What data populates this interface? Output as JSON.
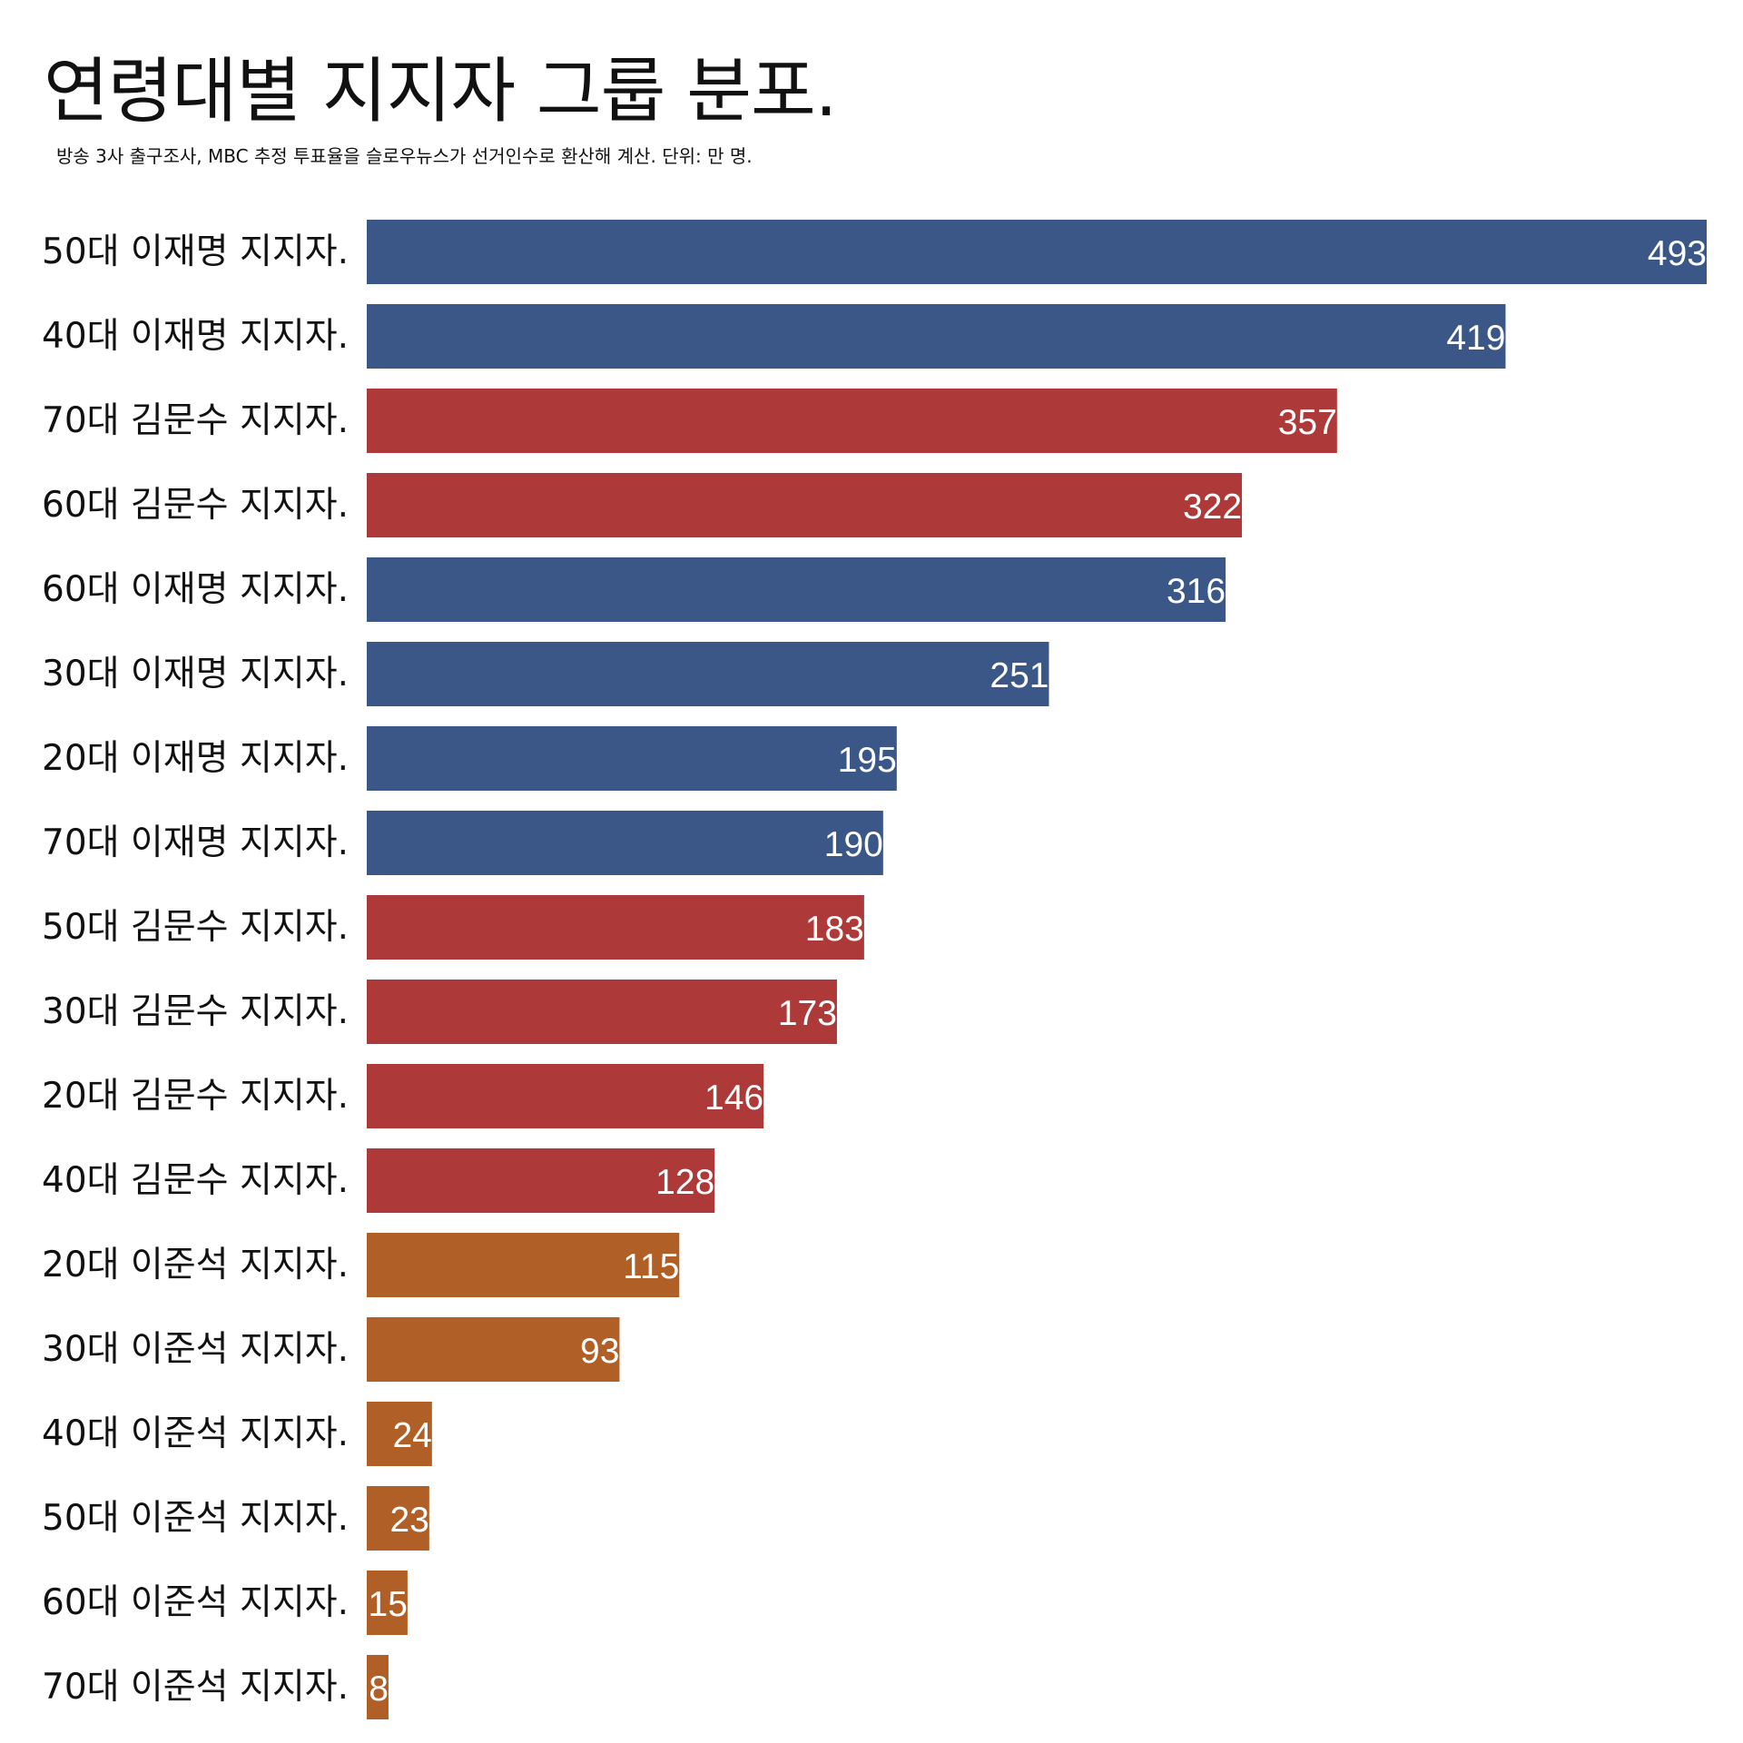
{
  "chart_data": {
    "type": "bar",
    "orientation": "horizontal",
    "title": "연령대별 지지자 그룹 분포.",
    "subtitle": "방송 3사 출구조사, MBC 추정 투표율을 슬로우뉴스가 선거인수로 환산해 계산.  단위: 만 명.",
    "categories": [
      "50대 이재명 지지자.",
      "40대 이재명 지지자.",
      "70대 김문수 지지자.",
      "60대 김문수 지지자.",
      "60대 이재명 지지자.",
      "30대 이재명 지지자.",
      "20대 이재명 지지자.",
      "70대 이재명 지지자.",
      "50대 김문수 지지자.",
      "30대 김문수 지지자.",
      "20대 김문수 지지자.",
      "40대 김문수 지지자.",
      "20대 이준석 지지자.",
      "30대 이준석 지지자.",
      "40대 이준석 지지자.",
      "50대 이준석 지지자.",
      "60대 이준석 지지자.",
      "70대 이준석 지지자."
    ],
    "values": [
      493,
      419,
      357,
      322,
      316,
      251,
      195,
      190,
      183,
      173,
      146,
      128,
      115,
      93,
      24,
      23,
      15,
      8
    ],
    "candidate": [
      "이재명",
      "이재명",
      "김문수",
      "김문수",
      "이재명",
      "이재명",
      "이재명",
      "이재명",
      "김문수",
      "김문수",
      "김문수",
      "김문수",
      "이준석",
      "이준석",
      "이준석",
      "이준석",
      "이준석",
      "이준석"
    ],
    "colors": {
      "이재명": "#3a5788",
      "김문수": "#ad3a39",
      "이준석": "#b06027"
    },
    "xlim": [
      0,
      493
    ],
    "grid": false,
    "legend": "none",
    "value_labels": true
  }
}
